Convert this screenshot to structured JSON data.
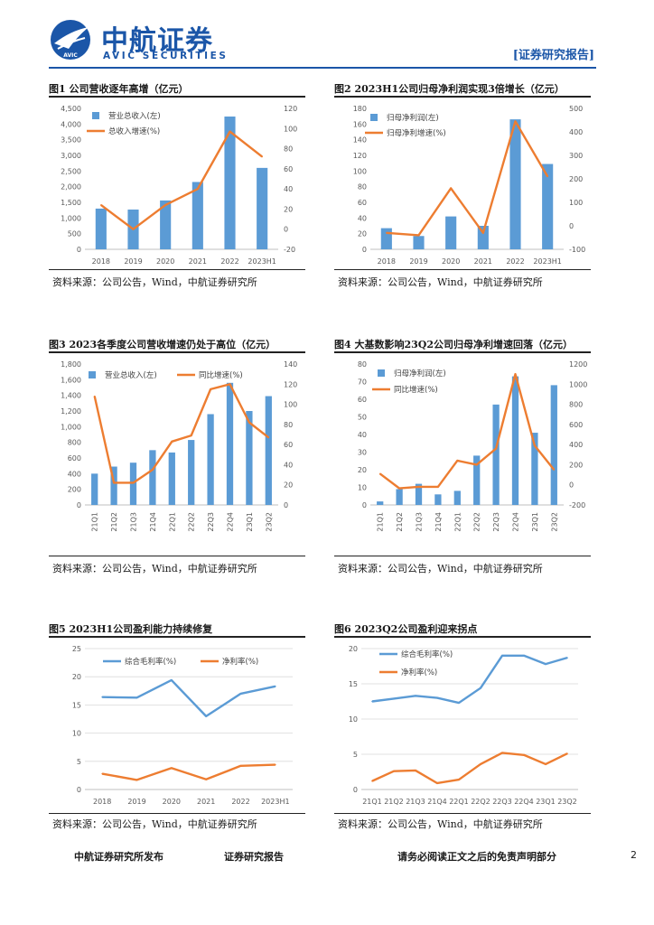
{
  "header": {
    "brand_cn": "中航证券",
    "brand_en": "AVIC SECURITIES",
    "logo_text": "AVIC",
    "report_tag": "[证券研究报告]",
    "brand_color": "#1b56a8"
  },
  "footer": {
    "publisher": "中航证券研究所发布",
    "report_type": "证券研究报告",
    "disclaimer": "请务必阅读正文之后的免责声明部分",
    "page_number": "2"
  },
  "colors": {
    "bar": "#5b9bd5",
    "line": "#ed7d31",
    "gridline": "#d9d9d9",
    "axis_text": "#595959"
  },
  "charts": [
    {
      "title": "图1 公司营收逐年高增（亿元）",
      "source": "资料来源：公司公告，Wind，中航证券研究所"
    },
    {
      "title": "图2 2023H1公司归母净利润实现3倍增长（亿元）",
      "source": "资料来源：公司公告，Wind，中航证券研究所"
    },
    {
      "title": "图3 2023各季度公司营收增速仍处于高位（亿元）",
      "source": "资料来源：公司公告，Wind，中航证券研究所"
    },
    {
      "title": "图4 大基数影响23Q2公司归母净利增速回落（亿元）",
      "source": "资料来源：公司公告，Wind，中航证券研究所"
    },
    {
      "title": "图5 2023H1公司盈利能力持续修复",
      "source": "资料来源：公司公告，Wind，中航证券研究所"
    },
    {
      "title": "图6 2023Q2公司盈利迎来拐点",
      "source": "资料来源：公司公告，Wind，中航证券研究所"
    }
  ],
  "chart_data": [
    {
      "type": "bar+line",
      "title": "图1 公司营收逐年高增（亿元）",
      "categories": [
        "2018",
        "2019",
        "2020",
        "2021",
        "2022",
        "2023H1"
      ],
      "rotate_labels": false,
      "left_axis": {
        "min": 0,
        "max": 4500,
        "step": 500,
        "format": "comma"
      },
      "right_axis": {
        "min": -20,
        "max": 120,
        "step": 20
      },
      "series": [
        {
          "name": "营业总收入(左)",
          "kind": "bar",
          "axis": "left",
          "values": [
            1300,
            1270,
            1560,
            2150,
            4240,
            2600
          ]
        },
        {
          "name": "总收入增速(%)",
          "kind": "line",
          "axis": "right",
          "values": [
            24,
            0,
            24,
            40,
            97,
            72
          ]
        }
      ],
      "legend_position": "top-left"
    },
    {
      "type": "bar+line",
      "title": "图2 2023H1公司归母净利润实现3倍增长（亿元）",
      "categories": [
        "2018",
        "2019",
        "2020",
        "2021",
        "2022",
        "2023H1"
      ],
      "rotate_labels": false,
      "left_axis": {
        "min": 0,
        "max": 180,
        "step": 20,
        "format": "plain"
      },
      "right_axis": {
        "min": -100,
        "max": 500,
        "step": 100
      },
      "series": [
        {
          "name": "归母净利润(左)",
          "kind": "bar",
          "axis": "left",
          "values": [
            27,
            17,
            42,
            30,
            166,
            109
          ]
        },
        {
          "name": "归母净利增速(%)",
          "kind": "line",
          "axis": "right",
          "values": [
            -30,
            -40,
            160,
            -30,
            445,
            210
          ]
        }
      ],
      "legend_position": "top-left"
    },
    {
      "type": "bar+line",
      "title": "图3 2023各季度公司营收增速仍处于高位（亿元）",
      "categories": [
        "21Q1",
        "21Q2",
        "21Q3",
        "21Q4",
        "22Q1",
        "22Q2",
        "22Q3",
        "22Q4",
        "23Q1",
        "23Q2"
      ],
      "rotate_labels": true,
      "left_axis": {
        "min": 0,
        "max": 1800,
        "step": 200,
        "format": "comma"
      },
      "right_axis": {
        "min": 0,
        "max": 140,
        "step": 20
      },
      "series": [
        {
          "name": "营业总收入(左)",
          "kind": "bar",
          "axis": "left",
          "values": [
            400,
            490,
            540,
            700,
            670,
            830,
            1160,
            1560,
            1200,
            1390
          ]
        },
        {
          "name": "同比增速(%)",
          "kind": "line",
          "axis": "right",
          "values": [
            108,
            22,
            22,
            35,
            63,
            69,
            115,
            120,
            82,
            67
          ]
        }
      ],
      "legend_position": "top-center"
    },
    {
      "type": "bar+line",
      "title": "图4 大基数影响23Q2公司归母净利增速回落（亿元）",
      "categories": [
        "21Q1",
        "21Q2",
        "21Q3",
        "21Q4",
        "22Q1",
        "22Q2",
        "22Q3",
        "22Q4",
        "23Q1",
        "23Q2"
      ],
      "rotate_labels": true,
      "left_axis": {
        "min": 0,
        "max": 80,
        "step": 10,
        "format": "plain"
      },
      "right_axis": {
        "min": -200,
        "max": 1200,
        "step": 200
      },
      "series": [
        {
          "name": "归母净利润(左)",
          "kind": "bar",
          "axis": "left",
          "values": [
            2,
            9,
            12,
            6,
            8,
            28,
            57,
            73,
            41,
            68
          ]
        },
        {
          "name": "同比增速(%)",
          "kind": "line",
          "axis": "right",
          "values": [
            110,
            -35,
            -20,
            -20,
            240,
            200,
            360,
            1100,
            390,
            150
          ]
        }
      ],
      "legend_position": "top-center"
    },
    {
      "type": "line",
      "title": "图5 2023H1公司盈利能力持续修复",
      "categories": [
        "2018",
        "2019",
        "2020",
        "2021",
        "2022",
        "2023H1"
      ],
      "rotate_labels": false,
      "left_axis": {
        "min": 0,
        "max": 25,
        "step": 5,
        "format": "plain"
      },
      "series": [
        {
          "name": "综合毛利率(%)",
          "kind": "line",
          "color": "#5b9bd5",
          "values": [
            16.4,
            16.3,
            19.4,
            13.0,
            17.0,
            18.3
          ]
        },
        {
          "name": "净利率(%)",
          "kind": "line",
          "color": "#ed7d31",
          "values": [
            2.8,
            1.7,
            3.8,
            1.8,
            4.2,
            4.4
          ]
        }
      ],
      "legend_position": "top"
    },
    {
      "type": "line",
      "title": "图6 2023Q2公司盈利迎来拐点",
      "categories": [
        "21Q1",
        "21Q2",
        "21Q3",
        "21Q4",
        "22Q1",
        "22Q2",
        "22Q3",
        "22Q4",
        "23Q1",
        "23Q2"
      ],
      "rotate_labels": false,
      "left_axis": {
        "min": 0,
        "max": 20,
        "step": 5,
        "format": "plain"
      },
      "series": [
        {
          "name": "综合毛利率(%)",
          "kind": "line",
          "color": "#5b9bd5",
          "values": [
            12.5,
            12.9,
            13.3,
            13.0,
            12.3,
            14.4,
            19.0,
            19.0,
            17.8,
            18.7
          ]
        },
        {
          "name": "净利率(%)",
          "kind": "line",
          "color": "#ed7d31",
          "values": [
            1.2,
            2.6,
            2.7,
            0.9,
            1.4,
            3.6,
            5.2,
            4.9,
            3.6,
            5.1
          ]
        }
      ],
      "legend_position": "top-left"
    }
  ]
}
